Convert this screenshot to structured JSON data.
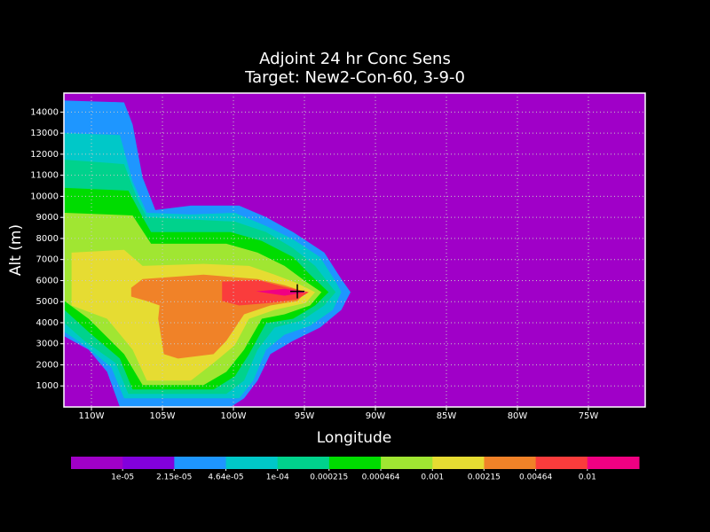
{
  "chart_data": {
    "type": "contour",
    "title": "Adjoint 24 hr Conc Sens",
    "subtitle": "Target: New2-Con-60, 3-9-0",
    "xlabel": "Longitude",
    "ylabel": "Alt (m)",
    "xlim": [
      -111.94,
      -71
    ],
    "ylim": [
      0,
      14900
    ],
    "xticks": [
      {
        "value": -110,
        "label": "110W"
      },
      {
        "value": -105,
        "label": "105W"
      },
      {
        "value": -100,
        "label": "100W"
      },
      {
        "value": -95,
        "label": "95W"
      },
      {
        "value": -90,
        "label": "90W"
      },
      {
        "value": -85,
        "label": "85W"
      },
      {
        "value": -80,
        "label": "80W"
      },
      {
        "value": -75,
        "label": "75W"
      }
    ],
    "yticks": [
      1000,
      2000,
      3000,
      4000,
      5000,
      6000,
      7000,
      8000,
      9000,
      10000,
      11000,
      12000,
      13000,
      14000
    ],
    "grid": true,
    "levels": [
      {
        "value": 1e-05,
        "label": "1e-05"
      },
      {
        "value": 2.15e-05,
        "label": "2.15e-05"
      },
      {
        "value": 4.64e-05,
        "label": "4.64e-05"
      },
      {
        "value": 0.0001,
        "label": "1e-04"
      },
      0.000215,
      0.000464,
      0.001,
      0.00215,
      0.00464,
      0.01
    ],
    "colors": [
      "#a000c8",
      "#8200dc",
      "#1e96ff",
      "#00c8c8",
      "#00d28c",
      "#00dc00",
      "#a0e632",
      "#e6dc32",
      "#f08228",
      "#fa3c3c",
      "#f00082"
    ],
    "regions": [
      {
        "level": 2,
        "lon": [
          -111.9,
          -107.7,
          -107.1,
          -106.4,
          -105.5,
          -103.0,
          -99.6,
          -97.7,
          -95.8,
          -93.6,
          -92.4,
          -91.75,
          -92.4,
          -93.9,
          -95.8,
          -97.4,
          -98.3,
          -99.25,
          -100.2,
          -108.0,
          -108.9,
          -110.2,
          -111.9
        ],
        "alt": [
          14550,
          14460,
          13410,
          10900,
          9350,
          9560,
          9560,
          9010,
          8300,
          7330,
          6070,
          5450,
          4610,
          3770,
          3140,
          2510,
          1250,
          410,
          0,
          0,
          1670,
          2720,
          3350
        ]
      },
      {
        "level": 3,
        "lon": [
          -111.9,
          -108.0,
          -107.1,
          -106.1,
          -103.0,
          -99.9,
          -97.7,
          -95.8,
          -93.9,
          -92.8,
          -92.4,
          -93.0,
          -94.6,
          -96.4,
          -97.7,
          -98.6,
          -99.6,
          -107.7,
          -108.6,
          -110.5,
          -111.9
        ],
        "alt": [
          13000,
          12910,
          10690,
          9220,
          9140,
          9220,
          8590,
          7960,
          7120,
          5950,
          5450,
          4610,
          3850,
          3430,
          2720,
          1250,
          410,
          410,
          1880,
          2930,
          3560
        ]
      },
      {
        "level": 4,
        "lon": [
          -111.9,
          -107.7,
          -106.75,
          -106.1,
          -102.7,
          -99.9,
          -97.7,
          -95.8,
          -94.25,
          -93.3,
          -92.8,
          -93.6,
          -95.2,
          -97.1,
          -98.3,
          -99.25,
          -100.5,
          -107.4,
          -108.3,
          -110.5,
          -111.9
        ],
        "alt": [
          11740,
          11530,
          9850,
          9010,
          8890,
          8800,
          8300,
          7540,
          6700,
          5870,
          5450,
          4820,
          4100,
          3770,
          2720,
          1250,
          620,
          620,
          2090,
          3140,
          3980
        ]
      },
      {
        "level": 5,
        "lon": [
          -111.9,
          -107.4,
          -106.4,
          -105.8,
          -100.2,
          -98.0,
          -95.8,
          -94.6,
          -93.3,
          -94.25,
          -95.8,
          -97.7,
          -98.9,
          -99.9,
          -101.4,
          -107.1,
          -108.0,
          -110.2,
          -111.9
        ],
        "alt": [
          10400,
          10270,
          9010,
          8300,
          8300,
          7880,
          7120,
          6280,
          5450,
          4820,
          4190,
          3980,
          2510,
          1460,
          830,
          830,
          2300,
          3560,
          4610
        ]
      },
      {
        "level": 6,
        "lon": [
          -111.9,
          -107.1,
          -105.8,
          -100.5,
          -98.3,
          -96.4,
          -94.9,
          -93.8,
          -94.6,
          -96.4,
          -98.0,
          -99.25,
          -100.5,
          -102.1,
          -106.4,
          -107.7,
          -110.2,
          -111.9
        ],
        "alt": [
          9220,
          9090,
          7750,
          7750,
          7330,
          6700,
          5950,
          5450,
          4820,
          4400,
          4190,
          2720,
          1670,
          1040,
          1040,
          2510,
          4190,
          5030
        ]
      },
      {
        "level": 7,
        "lon": [
          -111.4,
          -107.7,
          -106.4,
          -102.1,
          -98.9,
          -97.1,
          -95.5,
          -94.25,
          -94.9,
          -97.1,
          -98.9,
          -99.9,
          -101.4,
          -103.0,
          -106.1,
          -107.1,
          -108.9,
          -111.4
        ],
        "alt": [
          7330,
          7460,
          6700,
          6790,
          6700,
          6280,
          5870,
          5450,
          4940,
          4610,
          4190,
          2930,
          2090,
          1250,
          1250,
          2720,
          4190,
          4820
        ]
      },
      {
        "level": 8,
        "lon": [
          -107.2,
          -106.4,
          -102.1,
          -98.3,
          -96.4,
          -94.9,
          -95.5,
          -97.4,
          -99.25,
          -100.5,
          -101.4,
          -103.9,
          -104.9,
          -105.3,
          -105.2,
          -106.1,
          -107.2
        ],
        "alt": [
          5660,
          6070,
          6280,
          6070,
          5780,
          5450,
          5030,
          4820,
          4400,
          3140,
          2510,
          2300,
          2510,
          4190,
          4820,
          5030,
          5240
        ]
      },
      {
        "level": 9,
        "lon": [
          -100.8,
          -98.3,
          -96.4,
          -94.7,
          -95.5,
          -97.4,
          -99.6,
          -100.8
        ],
        "alt": [
          5950,
          6030,
          5700,
          5450,
          5110,
          4940,
          4820,
          5030
        ]
      },
      {
        "level": 10,
        "lon": [
          -98.4,
          -96.4,
          -94.9,
          -96.4
        ],
        "alt": [
          5490,
          5610,
          5450,
          5280
        ]
      }
    ],
    "target": {
      "lon": -95.5,
      "alt": 5490
    }
  }
}
